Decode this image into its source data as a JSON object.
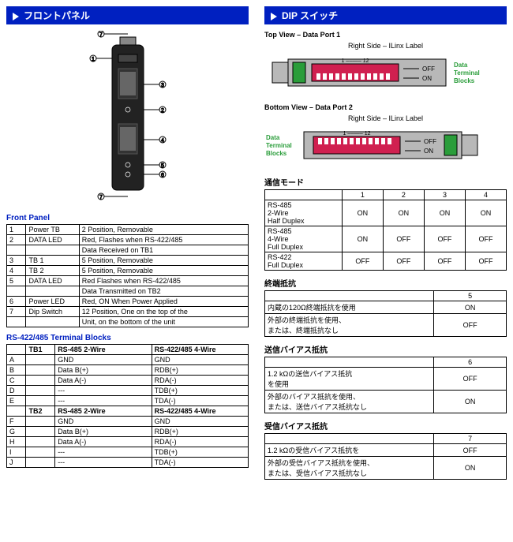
{
  "left": {
    "header": "フロントパネル",
    "front_panel_title": "Front Panel",
    "front_panel_rows": [
      [
        "1",
        "Power TB",
        "2 Position, Removable"
      ],
      [
        "2",
        "DATA LED",
        "Red, Flashes when RS-422/485"
      ],
      [
        "",
        "",
        "Data Received on TB1"
      ],
      [
        "3",
        "TB 1",
        "5 Position, Removable"
      ],
      [
        "4",
        "TB 2",
        "5 Position, Removable"
      ],
      [
        "5",
        "DATA LED",
        "Red Flashes when RS-422/485"
      ],
      [
        "",
        "",
        "Data Transmitted on TB2"
      ],
      [
        "6",
        "Power LED",
        "Red, ON When Power Applied"
      ],
      [
        "7",
        "Dip Switch",
        "12 Position, One on the top of the"
      ],
      [
        "",
        "",
        "Unit, on the bottom of the unit"
      ]
    ],
    "tb_title": "RS-422/485 Terminal Blocks",
    "tb_head1": [
      "",
      "TB1",
      "RS-485 2-Wire",
      "RS-422/485 4-Wire"
    ],
    "tb_rows1": [
      [
        "A",
        "",
        "GND",
        "GND"
      ],
      [
        "B",
        "",
        "Data B(+)",
        "RDB(+)"
      ],
      [
        "C",
        "",
        "Data A(-)",
        "RDA(-)"
      ],
      [
        "D",
        "",
        "---",
        "TDB(+)"
      ],
      [
        "E",
        "",
        "---",
        "TDA(-)"
      ]
    ],
    "tb_head2": [
      "",
      "TB2",
      "RS-485 2-Wire",
      "RS-422/485 4-Wire"
    ],
    "tb_rows2": [
      [
        "F",
        "",
        "GND",
        "GND"
      ],
      [
        "G",
        "",
        "Data B(+)",
        "RDB(+)"
      ],
      [
        "H",
        "",
        "Data A(-)",
        "RDA(-)"
      ],
      [
        "I",
        "",
        "---",
        "TDB(+)"
      ],
      [
        "J",
        "",
        "---",
        "TDA(-)"
      ]
    ]
  },
  "right": {
    "header": "DIP スイッチ",
    "top_view": "Top View – Data Port 1",
    "bottom_view": "Bottom View – Data Port 2",
    "right_side": "Right Side – ILinx Label",
    "dtb": "Data\nTerminal\nBlocks",
    "off": "OFF",
    "on": "ON",
    "range": "1 ––––– 12",
    "comm_title": "通信モード",
    "comm_cols": [
      "",
      "1",
      "2",
      "3",
      "4"
    ],
    "comm_rows": [
      [
        "RS-485\n2-Wire\nHalf Duplex",
        "ON",
        "ON",
        "ON",
        "ON"
      ],
      [
        "RS-485\n4-Wire\nFull Duplex",
        "ON",
        "OFF",
        "OFF",
        "OFF"
      ],
      [
        "RS-422\nFull Duplex",
        "OFF",
        "OFF",
        "OFF",
        "OFF"
      ]
    ],
    "term_title": "終端抵抗",
    "term_col": "5",
    "term_rows": [
      [
        "内蔵の120Ω終端抵抗を使用",
        "ON"
      ],
      [
        "外部の終端抵抗を使用、\nまたは、終端抵抗なし",
        "OFF"
      ]
    ],
    "txbias_title": "送信バイアス抵抗",
    "txbias_col": "6",
    "txbias_rows": [
      [
        "1.2 kΩの送信バイアス抵抗\nを使用",
        "OFF"
      ],
      [
        "外部のバイアス抵抗を使用、\nまたは、送信バイアス抵抗なし",
        "ON"
      ]
    ],
    "rxbias_title": "受信バイアス抵抗",
    "rxbias_col": "7",
    "rxbias_rows": [
      [
        "1.2 kΩの受信バイアス抵抗を",
        "OFF"
      ],
      [
        "外部の受信バイアス抵抗を使用、\nまたは、受信バイアス抵抗なし",
        "ON"
      ]
    ]
  },
  "colors": {
    "header_bg": "#0020c0",
    "accent_green": "#2a9d3a",
    "accent_red": "#d02050",
    "gray": "#b8b8b8",
    "dark": "#222"
  }
}
